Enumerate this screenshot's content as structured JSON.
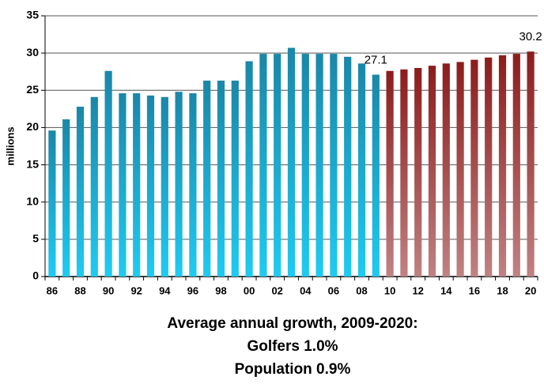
{
  "chart_data": {
    "type": "bar",
    "y_label": "millions",
    "categories": [
      "86",
      null,
      "88",
      null,
      "90",
      null,
      "92",
      null,
      "94",
      null,
      "96",
      null,
      "98",
      null,
      "00",
      null,
      "02",
      null,
      "04",
      null,
      "06",
      null,
      "08",
      null,
      "10",
      null,
      "12",
      null,
      "14",
      null,
      "16",
      null,
      "18",
      null,
      "20"
    ],
    "series": [
      {
        "color": "#1a87a8",
        "values": [
          19.6,
          21.1,
          22.8,
          24.1,
          27.6,
          24.6,
          24.6,
          24.3,
          24.1,
          24.8,
          24.6,
          26.3,
          26.3,
          26.3,
          28.9,
          29.9,
          29.9,
          30.7,
          29.9,
          29.9,
          29.9,
          29.5,
          28.6,
          27.1,
          null,
          null,
          null,
          null,
          null,
          null,
          null,
          null,
          null,
          null,
          null
        ],
        "value_labels": [
          null,
          null,
          null,
          null,
          null,
          null,
          null,
          null,
          null,
          null,
          null,
          null,
          null,
          null,
          null,
          null,
          null,
          null,
          null,
          null,
          null,
          null,
          null,
          "27.1",
          null,
          null,
          null,
          null,
          null,
          null,
          null,
          null,
          null,
          null,
          null
        ]
      },
      {
        "color": "#8c1c1c",
        "values": [
          null,
          null,
          null,
          null,
          null,
          null,
          null,
          null,
          null,
          null,
          null,
          null,
          null,
          null,
          null,
          null,
          null,
          null,
          null,
          null,
          null,
          null,
          null,
          null,
          27.6,
          27.8,
          28.0,
          28.3,
          28.6,
          28.8,
          29.1,
          29.4,
          29.7,
          29.9,
          30.2
        ],
        "value_labels": [
          null,
          null,
          null,
          null,
          null,
          null,
          null,
          null,
          null,
          null,
          null,
          null,
          null,
          null,
          null,
          null,
          null,
          null,
          null,
          null,
          null,
          null,
          null,
          null,
          null,
          null,
          null,
          null,
          null,
          null,
          null,
          null,
          null,
          null,
          "30.2"
        ]
      }
    ],
    "ylim": [
      0,
      35
    ],
    "yticks": [
      0,
      5,
      10,
      15,
      20,
      25,
      30,
      35
    ],
    "grid": true,
    "annotations": [
      "Average annual growth, 2009-2020:",
      "Golfers 1.0%",
      "Population 0.9%"
    ]
  }
}
